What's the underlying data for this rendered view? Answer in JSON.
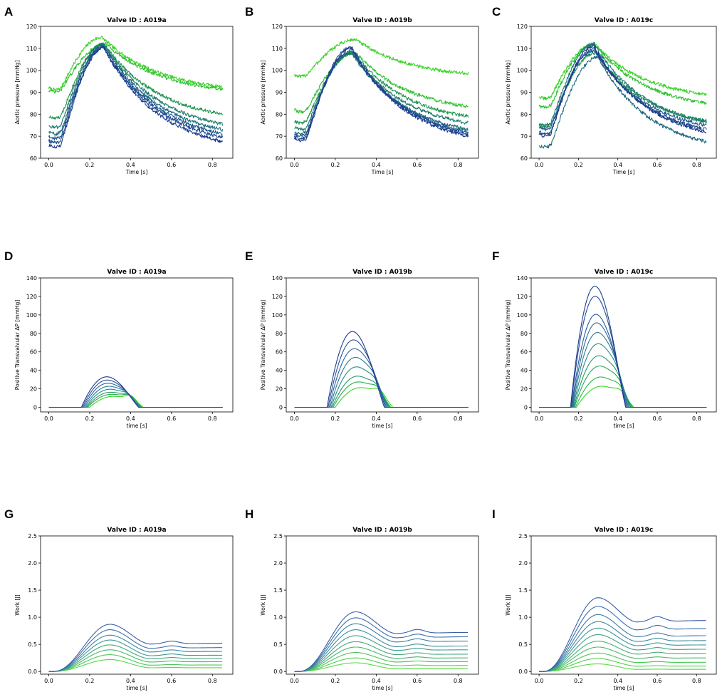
{
  "chart_data": [
    {
      "panel": "A",
      "type": "line",
      "title": "Valve ID : A019a",
      "xlabel": "Time [s]",
      "ylabel": "Aortic pressure [mmHg]",
      "xlim": [
        -0.04,
        0.9
      ],
      "ylim": [
        60,
        120
      ],
      "xticks": [
        0.0,
        0.2,
        0.4,
        0.6,
        0.8
      ],
      "yticks": [
        60,
        70,
        80,
        90,
        100,
        110,
        120
      ],
      "curve_model": "pressure",
      "noisy": true,
      "series": [
        {
          "name": "s1",
          "color": "#1b3c8f",
          "start": 66,
          "peak": 110,
          "peak_t": 0.27,
          "end": 67.5
        },
        {
          "name": "s2",
          "color": "#1f4a8f",
          "start": 68,
          "peak": 110.5,
          "peak_t": 0.27,
          "end": 69.5
        },
        {
          "name": "s3",
          "color": "#1f5a8a",
          "start": 70,
          "peak": 111,
          "peak_t": 0.27,
          "end": 71
        },
        {
          "name": "s4",
          "color": "#1f6a80",
          "start": 72,
          "peak": 111.5,
          "peak_t": 0.27,
          "end": 73
        },
        {
          "name": "s5",
          "color": "#1f7b70",
          "start": 75,
          "peak": 112,
          "peak_t": 0.27,
          "end": 75.5
        },
        {
          "name": "s6",
          "color": "#1f9550",
          "start": 79,
          "peak": 112,
          "peak_t": 0.27,
          "end": 80
        },
        {
          "name": "s7",
          "color": "#2ec030",
          "start": 91,
          "peak": 112,
          "peak_t": 0.28,
          "end": 91.5
        },
        {
          "name": "s8",
          "color": "#3dd22a",
          "start": 92,
          "peak": 115,
          "peak_t": 0.26,
          "end": 92.5
        }
      ]
    },
    {
      "panel": "B",
      "type": "line",
      "title": "Valve ID : A019b",
      "xlabel": "Time [s]",
      "ylabel": "Aortic pressure [mmHg]",
      "xlim": [
        -0.04,
        0.9
      ],
      "ylim": [
        60,
        120
      ],
      "xticks": [
        0.0,
        0.2,
        0.4,
        0.6,
        0.8
      ],
      "yticks": [
        60,
        70,
        80,
        90,
        100,
        110,
        120
      ],
      "curve_model": "pressure",
      "noisy": true,
      "series": [
        {
          "name": "s1",
          "color": "#1b3c8f",
          "start": 69,
          "peak": 110,
          "peak_t": 0.28,
          "end": 70
        },
        {
          "name": "s2",
          "color": "#1f4a8f",
          "start": 70,
          "peak": 110.5,
          "peak_t": 0.28,
          "end": 71
        },
        {
          "name": "s3",
          "color": "#1f5a8a",
          "start": 71,
          "peak": 109,
          "peak_t": 0.28,
          "end": 72
        },
        {
          "name": "s4",
          "color": "#1f6a80",
          "start": 72,
          "peak": 108,
          "peak_t": 0.28,
          "end": 73
        },
        {
          "name": "s5",
          "color": "#1f7b70",
          "start": 74,
          "peak": 108,
          "peak_t": 0.28,
          "end": 76
        },
        {
          "name": "s6",
          "color": "#1f9550",
          "start": 77,
          "peak": 108,
          "peak_t": 0.29,
          "end": 79
        },
        {
          "name": "s7",
          "color": "#2ec030",
          "start": 82,
          "peak": 108,
          "peak_t": 0.3,
          "end": 83.5
        },
        {
          "name": "s8",
          "color": "#3dd22a",
          "start": 98,
          "peak": 114,
          "peak_t": 0.3,
          "end": 98.5
        }
      ]
    },
    {
      "panel": "C",
      "type": "line",
      "title": "Valve ID : A019c",
      "xlabel": "Time [s]",
      "ylabel": "Aortic pressure [mmHg]",
      "xlim": [
        -0.04,
        0.9
      ],
      "ylim": [
        60,
        120
      ],
      "xticks": [
        0.0,
        0.2,
        0.4,
        0.6,
        0.8
      ],
      "yticks": [
        60,
        70,
        80,
        90,
        100,
        110,
        120
      ],
      "curve_model": "pressure",
      "noisy": true,
      "series": [
        {
          "name": "s1",
          "color": "#1b3c8f",
          "start": 71,
          "peak": 111,
          "peak_t": 0.28,
          "end": 72
        },
        {
          "name": "s2",
          "color": "#1f4a8f",
          "start": 72,
          "peak": 110,
          "peak_t": 0.28,
          "end": 73
        },
        {
          "name": "s3",
          "color": "#1f5a8a",
          "start": 74,
          "peak": 109,
          "peak_t": 0.28,
          "end": 75
        },
        {
          "name": "s4",
          "color": "#1f6a80",
          "start": 66,
          "peak": 106,
          "peak_t": 0.3,
          "end": 67.5
        },
        {
          "name": "s5",
          "color": "#1f7b70",
          "start": 76,
          "peak": 112,
          "peak_t": 0.28,
          "end": 76.5
        },
        {
          "name": "s6",
          "color": "#1f9550",
          "start": 75,
          "peak": 108,
          "peak_t": 0.29,
          "end": 77
        },
        {
          "name": "s7",
          "color": "#2ec030",
          "start": 84,
          "peak": 112,
          "peak_t": 0.28,
          "end": 85
        },
        {
          "name": "s8",
          "color": "#3dd22a",
          "start": 88,
          "peak": 112,
          "peak_t": 0.28,
          "end": 89
        }
      ]
    },
    {
      "panel": "D",
      "type": "line",
      "title": "Valve ID : A019a",
      "xlabel": "time [s]",
      "ylabel": "Positive Transvalvular ΔP [mmHg]",
      "xlim": [
        -0.04,
        0.9
      ],
      "ylim": [
        -5,
        140
      ],
      "xticks": [
        0.0,
        0.2,
        0.4,
        0.6,
        0.8
      ],
      "yticks": [
        0,
        20,
        40,
        60,
        80,
        100,
        120,
        140
      ],
      "curve_model": "dp",
      "noisy": false,
      "series": [
        {
          "name": "s1",
          "color": "#1b3c8f",
          "t0": 0.16,
          "t1": 0.44,
          "amp": 33,
          "tail": 0
        },
        {
          "name": "s2",
          "color": "#284f99",
          "t0": 0.165,
          "t1": 0.44,
          "amp": 30,
          "tail": 0.05
        },
        {
          "name": "s3",
          "color": "#2c64a0",
          "t0": 0.17,
          "t1": 0.44,
          "amp": 27,
          "tail": 0.1
        },
        {
          "name": "s4",
          "color": "#2a7a9a",
          "t0": 0.175,
          "t1": 0.445,
          "amp": 24,
          "tail": 0.15
        },
        {
          "name": "s5",
          "color": "#258a85",
          "t0": 0.18,
          "t1": 0.45,
          "amp": 21,
          "tail": 0.2
        },
        {
          "name": "s6",
          "color": "#219a6a",
          "t0": 0.185,
          "t1": 0.45,
          "amp": 18,
          "tail": 0.27
        },
        {
          "name": "s7",
          "color": "#25ad4f",
          "t0": 0.19,
          "t1": 0.455,
          "amp": 16,
          "tail": 0.35
        },
        {
          "name": "s8",
          "color": "#3dd22a",
          "t0": 0.2,
          "t1": 0.46,
          "amp": 14,
          "tail": 0.45
        }
      ]
    },
    {
      "panel": "E",
      "type": "line",
      "title": "Valve ID : A019b",
      "xlabel": "time [s]",
      "ylabel": "Positive Transvalvular ΔP [mmHg]",
      "xlim": [
        -0.04,
        0.9
      ],
      "ylim": [
        -5,
        140
      ],
      "xticks": [
        0.0,
        0.2,
        0.4,
        0.6,
        0.8
      ],
      "yticks": [
        0,
        20,
        40,
        60,
        80,
        100,
        120,
        140
      ],
      "curve_model": "dp",
      "noisy": false,
      "series": [
        {
          "name": "s1",
          "color": "#1b3c8f",
          "t0": 0.16,
          "t1": 0.44,
          "amp": 82,
          "tail": 0
        },
        {
          "name": "s2",
          "color": "#284f99",
          "t0": 0.165,
          "t1": 0.445,
          "amp": 74,
          "tail": 0.04
        },
        {
          "name": "s3",
          "color": "#2c64a0",
          "t0": 0.17,
          "t1": 0.45,
          "amp": 65,
          "tail": 0.07
        },
        {
          "name": "s4",
          "color": "#2a7a9a",
          "t0": 0.175,
          "t1": 0.455,
          "amp": 56,
          "tail": 0.1
        },
        {
          "name": "s5",
          "color": "#258a85",
          "t0": 0.18,
          "t1": 0.46,
          "amp": 46,
          "tail": 0.14
        },
        {
          "name": "s6",
          "color": "#219a6a",
          "t0": 0.185,
          "t1": 0.465,
          "amp": 36,
          "tail": 0.18
        },
        {
          "name": "s7",
          "color": "#25ad4f",
          "t0": 0.19,
          "t1": 0.47,
          "amp": 30,
          "tail": 0.24
        },
        {
          "name": "s8",
          "color": "#3dd22a",
          "t0": 0.2,
          "t1": 0.48,
          "amp": 24,
          "tail": 0.32
        }
      ]
    },
    {
      "panel": "F",
      "type": "line",
      "title": "Valve ID : A019c",
      "xlabel": "time [s]",
      "ylabel": "Positive Transvalvular ΔP [mmHg]",
      "xlim": [
        -0.04,
        0.9
      ],
      "ylim": [
        -5,
        140
      ],
      "xticks": [
        0.0,
        0.2,
        0.4,
        0.6,
        0.8
      ],
      "yticks": [
        0,
        20,
        40,
        60,
        80,
        100,
        120,
        140
      ],
      "curve_model": "dp",
      "noisy": false,
      "series": [
        {
          "name": "s1",
          "color": "#1b3c8f",
          "t0": 0.16,
          "t1": 0.44,
          "amp": 131,
          "tail": 0
        },
        {
          "name": "s2",
          "color": "#234b96",
          "t0": 0.162,
          "t1": 0.44,
          "amp": 121,
          "tail": 0.02
        },
        {
          "name": "s3",
          "color": "#285a9c",
          "t0": 0.165,
          "t1": 0.445,
          "amp": 102,
          "tail": 0.04
        },
        {
          "name": "s4",
          "color": "#2a6a9e",
          "t0": 0.168,
          "t1": 0.45,
          "amp": 93,
          "tail": 0.05
        },
        {
          "name": "s5",
          "color": "#2a7a94",
          "t0": 0.171,
          "t1": 0.455,
          "amp": 83,
          "tail": 0.07
        },
        {
          "name": "s6",
          "color": "#268a82",
          "t0": 0.174,
          "t1": 0.46,
          "amp": 71,
          "tail": 0.09
        },
        {
          "name": "s7",
          "color": "#229a6c",
          "t0": 0.177,
          "t1": 0.465,
          "amp": 58,
          "tail": 0.11
        },
        {
          "name": "s8",
          "color": "#22a858",
          "t0": 0.18,
          "t1": 0.47,
          "amp": 47,
          "tail": 0.14
        },
        {
          "name": "s9",
          "color": "#28b844",
          "t0": 0.185,
          "t1": 0.475,
          "amp": 35,
          "tail": 0.18
        },
        {
          "name": "s10",
          "color": "#3dd22a",
          "t0": 0.19,
          "t1": 0.48,
          "amp": 25,
          "tail": 0.25
        }
      ]
    },
    {
      "panel": "G",
      "type": "line",
      "title": "Valve ID : A019a",
      "xlabel": "time [s]",
      "ylabel": "Work [J]",
      "xlim": [
        -0.04,
        0.9
      ],
      "ylim": [
        -0.05,
        2.5
      ],
      "xticks": [
        0.0,
        0.2,
        0.4,
        0.6,
        0.8
      ],
      "yticks": [
        0.0,
        0.5,
        1.0,
        1.5,
        2.0,
        2.5
      ],
      "curve_model": "work",
      "noisy": false,
      "series": [
        {
          "name": "s1",
          "color": "#3b5fa6",
          "peak": 0.87,
          "end": 0.52
        },
        {
          "name": "s2",
          "color": "#3d72a8",
          "peak": 0.77,
          "end": 0.44
        },
        {
          "name": "s3",
          "color": "#3f86a4",
          "peak": 0.67,
          "end": 0.37
        },
        {
          "name": "s4",
          "color": "#419893",
          "peak": 0.58,
          "end": 0.3
        },
        {
          "name": "s5",
          "color": "#44a87f",
          "peak": 0.49,
          "end": 0.24
        },
        {
          "name": "s6",
          "color": "#48b86c",
          "peak": 0.4,
          "end": 0.18
        },
        {
          "name": "s7",
          "color": "#4cc85a",
          "peak": 0.31,
          "end": 0.12
        },
        {
          "name": "s8",
          "color": "#52d84a",
          "peak": 0.22,
          "end": 0.07
        }
      ]
    },
    {
      "panel": "H",
      "type": "line",
      "title": "Valve ID : A019b",
      "xlabel": "time [s]",
      "ylabel": "Work [J]",
      "xlim": [
        -0.04,
        0.9
      ],
      "ylim": [
        -0.05,
        2.5
      ],
      "xticks": [
        0.0,
        0.2,
        0.4,
        0.6,
        0.8
      ],
      "yticks": [
        0.0,
        0.5,
        1.0,
        1.5,
        2.0,
        2.5
      ],
      "curve_model": "work",
      "noisy": false,
      "series": [
        {
          "name": "s1",
          "color": "#3b5fa6",
          "peak": 1.1,
          "end": 0.72
        },
        {
          "name": "s2",
          "color": "#3c6ea8",
          "peak": 0.99,
          "end": 0.64
        },
        {
          "name": "s3",
          "color": "#3e7ea7",
          "peak": 0.88,
          "end": 0.56
        },
        {
          "name": "s4",
          "color": "#408d9c",
          "peak": 0.77,
          "end": 0.47
        },
        {
          "name": "s5",
          "color": "#429a8c",
          "peak": 0.66,
          "end": 0.4
        },
        {
          "name": "s6",
          "color": "#45a77c",
          "peak": 0.55,
          "end": 0.32
        },
        {
          "name": "s7",
          "color": "#48b46c",
          "peak": 0.45,
          "end": 0.25
        },
        {
          "name": "s8",
          "color": "#4cc25c",
          "peak": 0.35,
          "end": 0.18
        },
        {
          "name": "s9",
          "color": "#50d04e",
          "peak": 0.25,
          "end": 0.11
        },
        {
          "name": "s10",
          "color": "#54dc42",
          "peak": 0.16,
          "end": 0.05
        }
      ]
    },
    {
      "panel": "I",
      "type": "line",
      "title": "Valve ID : A019c",
      "xlabel": "time [s]",
      "ylabel": "Work [J]",
      "xlim": [
        -0.04,
        0.9
      ],
      "ylim": [
        -0.05,
        2.5
      ],
      "xticks": [
        0.0,
        0.2,
        0.4,
        0.6,
        0.8
      ],
      "yticks": [
        0.0,
        0.5,
        1.0,
        1.5,
        2.0,
        2.5
      ],
      "curve_model": "work",
      "noisy": false,
      "series": [
        {
          "name": "s1",
          "color": "#3b5fa6",
          "peak": 1.36,
          "end": 0.94
        },
        {
          "name": "s2",
          "color": "#3c6ca8",
          "peak": 1.2,
          "end": 0.79
        },
        {
          "name": "s3",
          "color": "#3d7aa8",
          "peak": 1.05,
          "end": 0.66
        },
        {
          "name": "s4",
          "color": "#3f89a2",
          "peak": 0.92,
          "end": 0.57
        },
        {
          "name": "s5",
          "color": "#419596",
          "peak": 0.8,
          "end": 0.49
        },
        {
          "name": "s6",
          "color": "#43a186",
          "peak": 0.68,
          "end": 0.41
        },
        {
          "name": "s7",
          "color": "#46ad76",
          "peak": 0.56,
          "end": 0.33
        },
        {
          "name": "s8",
          "color": "#49b967",
          "peak": 0.45,
          "end": 0.25
        },
        {
          "name": "s9",
          "color": "#4cc65a",
          "peak": 0.34,
          "end": 0.17
        },
        {
          "name": "s10",
          "color": "#50d14e",
          "peak": 0.24,
          "end": 0.1
        },
        {
          "name": "s11",
          "color": "#55dc42",
          "peak": 0.14,
          "end": 0.04
        }
      ]
    }
  ]
}
